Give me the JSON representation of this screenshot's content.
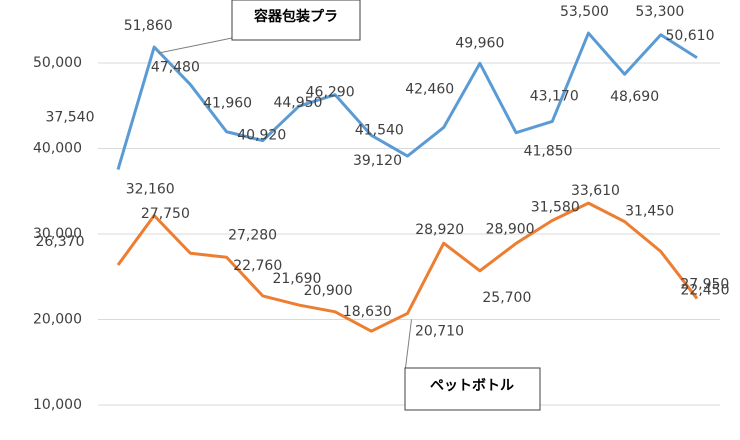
{
  "chart_data": {
    "type": "line",
    "ylim": [
      10000,
      55000
    ],
    "yticks": [
      {
        "value": 10000,
        "label": "10,000"
      },
      {
        "value": 20000,
        "label": "20,000"
      },
      {
        "value": 30000,
        "label": "30,000"
      },
      {
        "value": 40000,
        "label": "40,000"
      },
      {
        "value": 50000,
        "label": "50,000"
      }
    ],
    "grid": true,
    "series": [
      {
        "name": "容器包装プラ",
        "color": "#5b9bd5",
        "values": [
          37540,
          51860,
          47480,
          41960,
          40920,
          44950,
          46290,
          41540,
          39120,
          42460,
          49960,
          41850,
          43170,
          53500,
          48690,
          53300,
          50610
        ],
        "value_labels": [
          "37,540",
          "51,860",
          "47,480",
          "41,960",
          "40,920",
          "44,950",
          "46,290",
          "41,540",
          "39,120",
          "42,460",
          "49,960",
          "41,850",
          "43,170",
          "53,500",
          "48,690",
          "53,300",
          "50,610"
        ]
      },
      {
        "name": "ペットボトル",
        "color": "#ed7d31",
        "values": [
          26370,
          32160,
          27750,
          27280,
          22760,
          21690,
          20900,
          18630,
          20710,
          28920,
          25700,
          28900,
          31580,
          33610,
          31450,
          27950,
          22450
        ],
        "value_labels": [
          "26,370",
          "32,160",
          "27,750",
          "27,280",
          "22,760",
          "21,690",
          "20,900",
          "18,630",
          "20,710",
          "28,920",
          "25,700",
          "28,900",
          "31,580",
          "33,610",
          "31,450",
          "27,950",
          "22,450"
        ]
      }
    ]
  }
}
